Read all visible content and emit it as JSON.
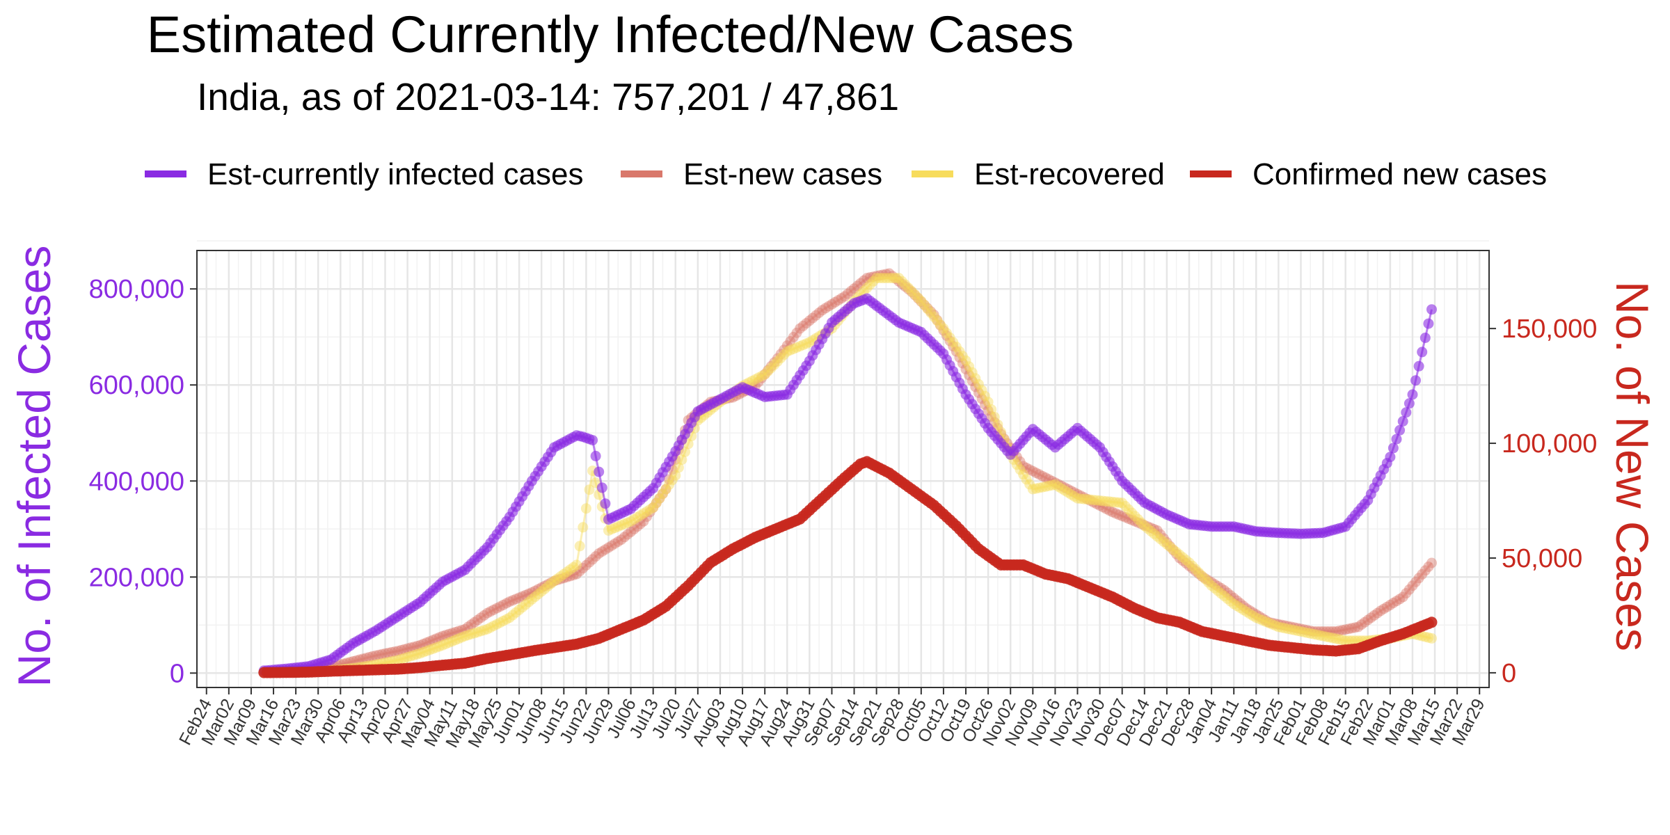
{
  "chart_data": {
    "type": "line",
    "title": "Estimated Currently Infected/New Cases",
    "subtitle": "India, as of 2021-03-14: 757,201 / 47,861",
    "ylabel_left": "No. of Infected Cases",
    "ylabel_right": "No. of New Cases",
    "ylim_left": [
      -30000,
      880000
    ],
    "ylim_right": [
      -6400,
      184000
    ],
    "yticks_left": [
      0,
      200000,
      400000,
      600000,
      800000
    ],
    "yticks_left_labels": [
      "0",
      "200,000",
      "400,000",
      "600,000",
      "800,000"
    ],
    "yticks_right": [
      0,
      50000,
      100000,
      150000
    ],
    "yticks_right_labels": [
      "0",
      "50,000",
      "100,000",
      "150,000"
    ],
    "xlim": [
      "2020-02-21",
      "2021-04-01"
    ],
    "x_tick_labels": [
      "Feb24",
      "Mar02",
      "Mar09",
      "Mar16",
      "Mar23",
      "Mar30",
      "Apr06",
      "Apr13",
      "Apr20",
      "Apr27",
      "May04",
      "May11",
      "May18",
      "May25",
      "Jun01",
      "Jun08",
      "Jun15",
      "Jun22",
      "Jun29",
      "Jul06",
      "Jul13",
      "Jul20",
      "Jul27",
      "Aug03",
      "Aug10",
      "Aug17",
      "Aug24",
      "Aug31",
      "Sep07",
      "Sep14",
      "Sep21",
      "Sep28",
      "Oct05",
      "Oct12",
      "Oct19",
      "Oct26",
      "Nov02",
      "Nov09",
      "Nov16",
      "Nov23",
      "Nov30",
      "Dec07",
      "Dec14",
      "Dec21",
      "Dec28",
      "Jan04",
      "Jan11",
      "Jan18",
      "Jan25",
      "Feb01",
      "Feb08",
      "Feb15",
      "Feb22",
      "Mar01",
      "Mar08",
      "Mar15",
      "Mar22",
      "Mar29"
    ],
    "x_tick_dates": [
      "2020-02-24",
      "2020-03-02",
      "2020-03-09",
      "2020-03-16",
      "2020-03-23",
      "2020-03-30",
      "2020-04-06",
      "2020-04-13",
      "2020-04-20",
      "2020-04-27",
      "2020-05-04",
      "2020-05-11",
      "2020-05-18",
      "2020-05-25",
      "2020-06-01",
      "2020-06-08",
      "2020-06-15",
      "2020-06-22",
      "2020-06-29",
      "2020-07-06",
      "2020-07-13",
      "2020-07-20",
      "2020-07-27",
      "2020-08-03",
      "2020-08-10",
      "2020-08-17",
      "2020-08-24",
      "2020-08-31",
      "2020-09-07",
      "2020-09-14",
      "2020-09-21",
      "2020-09-28",
      "2020-10-05",
      "2020-10-12",
      "2020-10-19",
      "2020-10-26",
      "2020-11-02",
      "2020-11-09",
      "2020-11-16",
      "2020-11-23",
      "2020-11-30",
      "2020-12-07",
      "2020-12-14",
      "2020-12-21",
      "2020-12-28",
      "2021-01-04",
      "2021-01-11",
      "2021-01-18",
      "2021-01-25",
      "2021-02-01",
      "2021-02-08",
      "2021-02-15",
      "2021-02-22",
      "2021-03-01",
      "2021-03-08",
      "2021-03-15",
      "2021-03-22",
      "2021-03-29"
    ],
    "legend_position": "top",
    "grid": true,
    "series": [
      {
        "name": "Est-currently infected cases",
        "axis": "left",
        "color": "#8A2BE2",
        "x": [
          "2020-03-13",
          "2020-03-20",
          "2020-03-27",
          "2020-04-03",
          "2020-04-10",
          "2020-04-17",
          "2020-04-24",
          "2020-05-01",
          "2020-05-08",
          "2020-05-15",
          "2020-05-22",
          "2020-05-29",
          "2020-06-05",
          "2020-06-12",
          "2020-06-19",
          "2020-06-21",
          "2020-06-24",
          "2020-06-29",
          "2020-07-06",
          "2020-07-13",
          "2020-07-20",
          "2020-07-27",
          "2020-08-03",
          "2020-08-10",
          "2020-08-17",
          "2020-08-24",
          "2020-08-31",
          "2020-09-07",
          "2020-09-14",
          "2020-09-18",
          "2020-09-21",
          "2020-09-28",
          "2020-10-05",
          "2020-10-12",
          "2020-10-19",
          "2020-10-26",
          "2020-11-02",
          "2020-11-09",
          "2020-11-16",
          "2020-11-23",
          "2020-11-30",
          "2020-12-07",
          "2020-12-14",
          "2020-12-21",
          "2020-12-28",
          "2021-01-04",
          "2021-01-11",
          "2021-01-18",
          "2021-01-25",
          "2021-02-01",
          "2021-02-08",
          "2021-02-15",
          "2021-02-22",
          "2021-03-01",
          "2021-03-08",
          "2021-03-14"
        ],
        "y": [
          5000,
          9000,
          14000,
          28000,
          62000,
          88000,
          118000,
          148000,
          190000,
          215000,
          262000,
          325000,
          400000,
          470000,
          495000,
          492000,
          485000,
          320000,
          342000,
          385000,
          462000,
          545000,
          570000,
          595000,
          575000,
          580000,
          650000,
          730000,
          770000,
          780000,
          765000,
          730000,
          710000,
          665000,
          580000,
          510000,
          455000,
          508000,
          470000,
          510000,
          470000,
          400000,
          355000,
          330000,
          310000,
          305000,
          305000,
          295000,
          292000,
          290000,
          292000,
          305000,
          360000,
          450000,
          580000,
          757201
        ]
      },
      {
        "name": "Est-new cases",
        "axis": "right",
        "color": "#D9786B",
        "x": [
          "2020-03-13",
          "2020-03-20",
          "2020-03-27",
          "2020-04-03",
          "2020-04-10",
          "2020-04-17",
          "2020-04-24",
          "2020-05-01",
          "2020-05-08",
          "2020-05-15",
          "2020-05-22",
          "2020-05-29",
          "2020-06-05",
          "2020-06-12",
          "2020-06-19",
          "2020-06-26",
          "2020-07-03",
          "2020-07-10",
          "2020-07-17",
          "2020-07-24",
          "2020-07-31",
          "2020-08-07",
          "2020-08-14",
          "2020-08-21",
          "2020-08-28",
          "2020-09-04",
          "2020-09-11",
          "2020-09-18",
          "2020-09-25",
          "2020-10-02",
          "2020-10-09",
          "2020-10-16",
          "2020-10-23",
          "2020-10-30",
          "2020-11-06",
          "2020-11-13",
          "2020-11-20",
          "2020-11-27",
          "2020-12-04",
          "2020-12-11",
          "2020-12-18",
          "2020-12-25",
          "2021-01-01",
          "2021-01-08",
          "2021-01-15",
          "2021-01-22",
          "2021-01-29",
          "2021-02-05",
          "2021-02-12",
          "2021-02-19",
          "2021-02-26",
          "2021-03-05",
          "2021-03-14"
        ],
        "y": [
          500,
          800,
          1200,
          2500,
          5000,
          7500,
          9500,
          12000,
          16000,
          19000,
          26000,
          31000,
          35000,
          40000,
          43000,
          52000,
          58000,
          66000,
          80000,
          110000,
          118000,
          120000,
          125000,
          137000,
          150000,
          158000,
          164000,
          172000,
          174000,
          166000,
          156000,
          140000,
          122000,
          104000,
          90000,
          85000,
          80000,
          75000,
          70000,
          66000,
          62000,
          50000,
          42000,
          36000,
          28000,
          22000,
          20000,
          18000,
          18000,
          20000,
          27000,
          33000,
          47861
        ]
      },
      {
        "name": "Est-recovered",
        "axis": "right",
        "color": "#F7DC5C",
        "x": [
          "2020-03-13",
          "2020-03-20",
          "2020-03-27",
          "2020-04-03",
          "2020-04-10",
          "2020-04-17",
          "2020-04-24",
          "2020-05-01",
          "2020-05-08",
          "2020-05-15",
          "2020-05-22",
          "2020-05-29",
          "2020-06-05",
          "2020-06-12",
          "2020-06-19",
          "2020-06-24",
          "2020-06-29",
          "2020-07-06",
          "2020-07-13",
          "2020-07-20",
          "2020-07-27",
          "2020-08-03",
          "2020-08-10",
          "2020-08-17",
          "2020-08-24",
          "2020-08-31",
          "2020-09-07",
          "2020-09-14",
          "2020-09-21",
          "2020-09-28",
          "2020-10-05",
          "2020-10-12",
          "2020-10-19",
          "2020-10-26",
          "2020-11-02",
          "2020-11-09",
          "2020-11-16",
          "2020-11-23",
          "2020-11-30",
          "2020-12-07",
          "2020-12-14",
          "2020-12-21",
          "2020-12-28",
          "2021-01-04",
          "2021-01-11",
          "2021-01-18",
          "2021-01-25",
          "2021-02-01",
          "2021-02-08",
          "2021-02-15",
          "2021-02-22",
          "2021-03-01",
          "2021-03-08",
          "2021-03-14"
        ],
        "y": [
          200,
          300,
          500,
          1000,
          2000,
          3500,
          5500,
          8500,
          12000,
          16000,
          19000,
          24000,
          32000,
          40000,
          47000,
          88000,
          62000,
          66000,
          72000,
          86000,
          110000,
          118000,
          125000,
          130000,
          140000,
          144000,
          150000,
          162000,
          172000,
          172000,
          162000,
          150000,
          136000,
          118000,
          95000,
          80000,
          82000,
          76000,
          75000,
          74000,
          64000,
          56000,
          48000,
          38000,
          30000,
          24000,
          20000,
          18000,
          16000,
          14000,
          14000,
          15000,
          17000,
          15000
        ]
      },
      {
        "name": "Confirmed new cases",
        "axis": "right",
        "color": "#C8281E",
        "x": [
          "2020-03-13",
          "2020-03-20",
          "2020-03-27",
          "2020-04-03",
          "2020-04-10",
          "2020-04-17",
          "2020-04-24",
          "2020-05-01",
          "2020-05-08",
          "2020-05-15",
          "2020-05-22",
          "2020-05-29",
          "2020-06-05",
          "2020-06-12",
          "2020-06-19",
          "2020-06-26",
          "2020-07-03",
          "2020-07-10",
          "2020-07-17",
          "2020-07-24",
          "2020-07-31",
          "2020-08-07",
          "2020-08-14",
          "2020-08-21",
          "2020-08-28",
          "2020-09-04",
          "2020-09-11",
          "2020-09-16",
          "2020-09-18",
          "2020-09-25",
          "2020-10-02",
          "2020-10-09",
          "2020-10-16",
          "2020-10-23",
          "2020-10-30",
          "2020-11-06",
          "2020-11-13",
          "2020-11-20",
          "2020-11-27",
          "2020-12-04",
          "2020-12-11",
          "2020-12-18",
          "2020-12-25",
          "2021-01-01",
          "2021-01-08",
          "2021-01-15",
          "2021-01-22",
          "2021-01-29",
          "2021-02-05",
          "2021-02-12",
          "2021-02-19",
          "2021-02-26",
          "2021-03-05",
          "2021-03-14"
        ],
        "y": [
          80,
          150,
          300,
          700,
          1000,
          1300,
          1600,
          2300,
          3300,
          4200,
          6200,
          7800,
          9500,
          11000,
          12500,
          15000,
          19000,
          23000,
          29000,
          38000,
          48000,
          54000,
          59000,
          63000,
          67000,
          76000,
          85000,
          91000,
          92000,
          87000,
          80000,
          73000,
          64000,
          54000,
          47000,
          47000,
          43000,
          41000,
          37000,
          33000,
          28000,
          24000,
          22000,
          18000,
          16000,
          14000,
          12000,
          11000,
          10000,
          9500,
          10500,
          14000,
          17000,
          22000
        ]
      }
    ]
  }
}
